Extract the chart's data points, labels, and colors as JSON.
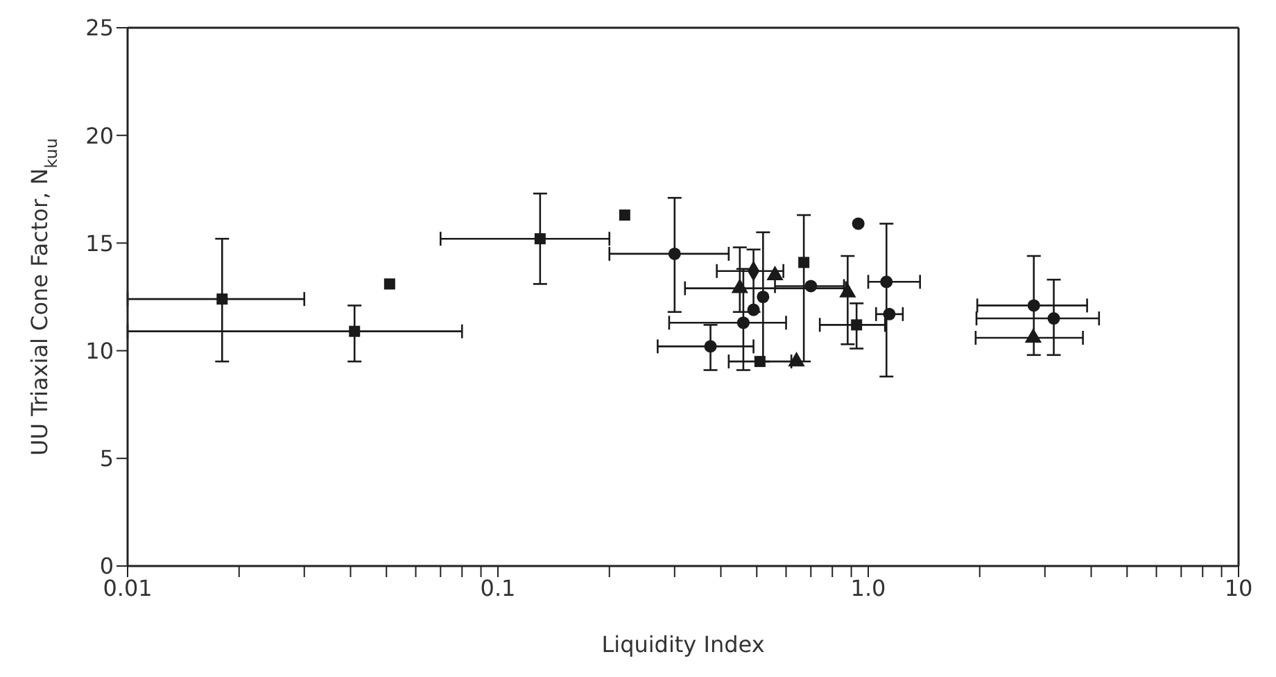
{
  "chart_data": {
    "type": "scatter",
    "xlabel": "Liquidity Index",
    "ylabel": "UU Triaxial Cone Factor, N$_{kuu}$",
    "log": "x",
    "xlim": [
      0.01,
      10
    ],
    "ylim": [
      0,
      25
    ],
    "xticks": [
      0.01,
      {
        "value": 0.02,
        "label": null
      },
      {
        "value": 0.03,
        "label": null
      },
      {
        "value": 0.04,
        "label": null
      },
      {
        "value": 0.05,
        "label": null
      },
      {
        "value": 0.06,
        "label": null
      },
      {
        "value": 0.07,
        "label": null
      },
      {
        "value": 0.08,
        "label": null
      },
      {
        "value": 0.09,
        "label": null
      },
      0.1,
      {
        "value": 0.2,
        "label": null
      },
      {
        "value": 0.3,
        "label": null
      },
      {
        "value": 0.4,
        "label": null
      },
      {
        "value": 0.5,
        "label": null
      },
      {
        "value": 0.6,
        "label": null
      },
      {
        "value": 0.7,
        "label": null
      },
      {
        "value": 0.8,
        "label": null
      },
      {
        "value": 0.9,
        "label": null
      },
      {
        "value": 1,
        "label": "1.0"
      },
      {
        "value": 2,
        "label": null
      },
      {
        "value": 3,
        "label": null
      },
      {
        "value": 4,
        "label": null
      },
      {
        "value": 5,
        "label": null
      },
      {
        "value": 6,
        "label": null
      },
      {
        "value": 7,
        "label": null
      },
      {
        "value": 8,
        "label": null
      },
      {
        "value": 9,
        "label": null
      },
      10
    ],
    "yticks": [
      0,
      5,
      10,
      15,
      20,
      25
    ],
    "series": [
      {
        "marker": "square",
        "color": "#1a1a1a",
        "x": [
          0.018,
          0.041,
          0.051,
          0.13,
          0.22,
          0.67,
          0.93,
          0.51
        ],
        "values": [
          12.4,
          10.9,
          13.1,
          15.2,
          16.3,
          14.1,
          11.2,
          9.5
        ],
        "errors": [
          [
            9.5,
            15.2
          ],
          [
            9.5,
            12.1
          ],
          null,
          [
            13.1,
            17.3
          ],
          null,
          [
            9.5,
            16.3
          ],
          [
            10.1,
            12.2
          ],
          null
        ],
        "xerrors": [
          [
            0.01,
            0.03
          ],
          [
            0.01,
            0.08
          ],
          null,
          [
            0.07,
            0.2
          ],
          null,
          null,
          [
            0.74,
            1.11
          ],
          [
            0.42,
            0.62
          ]
        ]
      },
      {
        "marker": "circle",
        "color": "#1a1a1a",
        "x": [
          0.3,
          0.52,
          0.49,
          0.46,
          0.375,
          0.7,
          1.12,
          1.14,
          2.8,
          3.17,
          0.94
        ],
        "values": [
          14.5,
          12.5,
          11.9,
          11.3,
          10.2,
          13.0,
          13.2,
          11.7,
          12.1,
          11.5,
          15.9
        ],
        "errors": [
          [
            11.8,
            17.1
          ],
          [
            9.5,
            15.5
          ],
          null,
          [
            9.1,
            13.8
          ],
          [
            9.1,
            11.2
          ],
          null,
          [
            8.8,
            15.9
          ],
          null,
          [
            9.8,
            14.4
          ],
          [
            9.8,
            13.3
          ],
          null
        ],
        "xerrors": [
          [
            0.2,
            0.42
          ],
          null,
          null,
          [
            0.29,
            0.6
          ],
          [
            0.27,
            0.49
          ],
          [
            0.56,
            0.86
          ],
          [
            1.0,
            1.38
          ],
          [
            1.05,
            1.24
          ],
          [
            1.97,
            3.9
          ],
          [
            1.96,
            4.2
          ],
          null
        ]
      },
      {
        "marker": "triangle",
        "color": "#1a1a1a",
        "x": [
          0.45,
          0.56,
          0.64,
          0.88,
          2.79
        ],
        "values": [
          12.9,
          13.5,
          9.5,
          12.7,
          10.6
        ],
        "errors": [
          [
            11.8,
            14.8
          ],
          null,
          null,
          [
            10.3,
            14.4
          ],
          null
        ],
        "xerrors": [
          [
            0.32,
            0.87
          ],
          null,
          null,
          null,
          [
            1.95,
            3.8
          ]
        ]
      },
      {
        "marker": "diamond",
        "color": "#1a1a1a",
        "x": [
          0.49
        ],
        "values": [
          13.7
        ],
        "errors": [
          [
            11.8,
            14.7
          ]
        ],
        "xerrors": [
          [
            0.39,
            0.59
          ]
        ]
      }
    ]
  }
}
